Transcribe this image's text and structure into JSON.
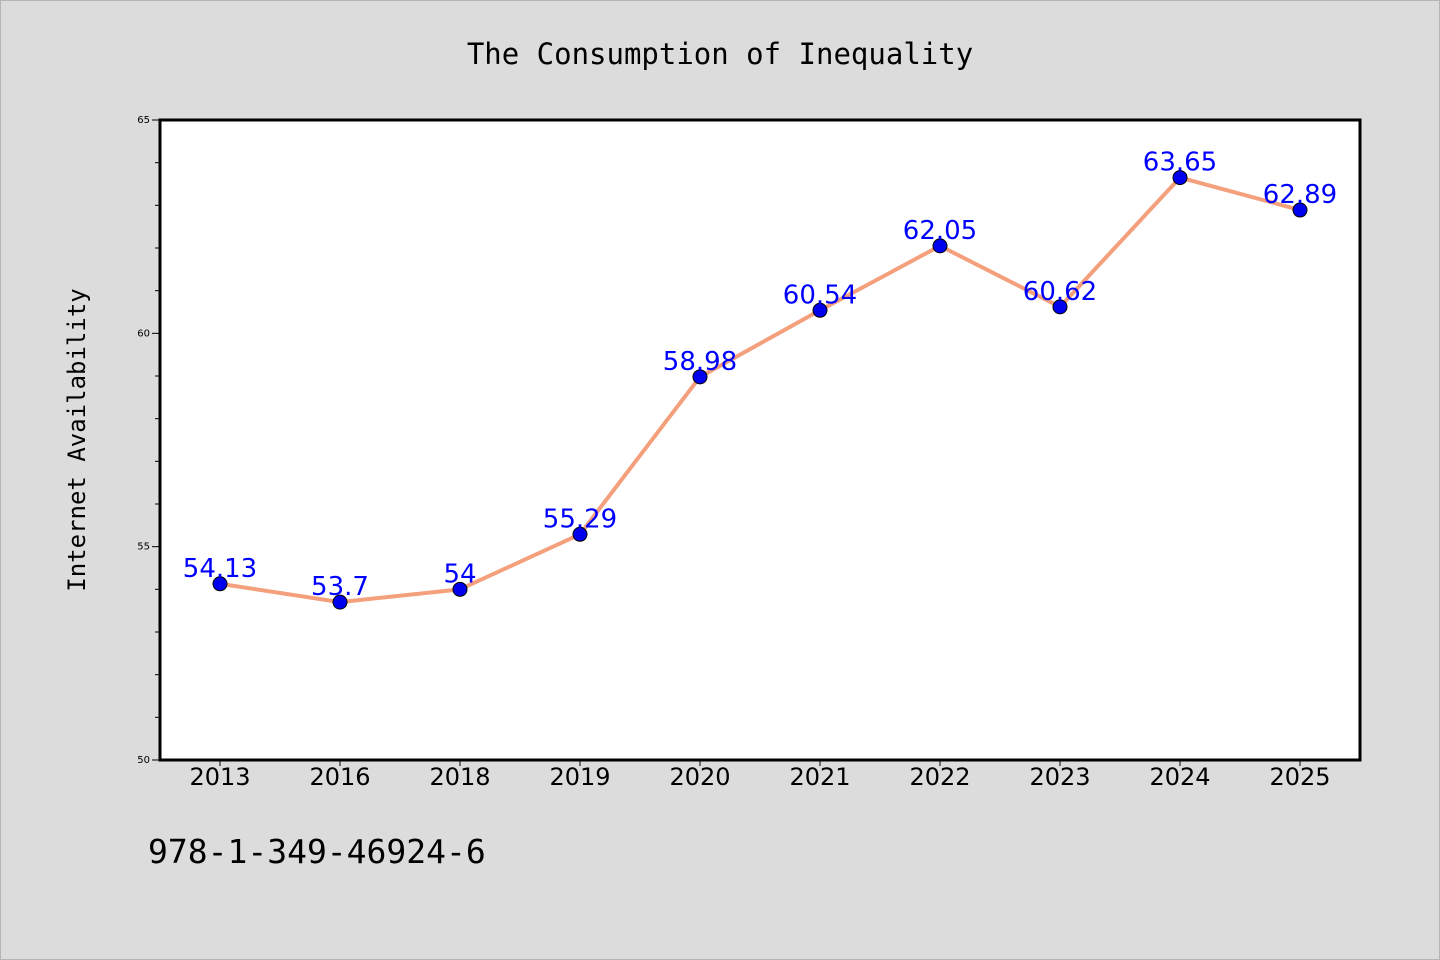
{
  "chart_data": {
    "type": "line",
    "title": "The Consumption of Inequality",
    "xlabel": "",
    "ylabel": "Internet Availability",
    "categories": [
      "2013",
      "2016",
      "2018",
      "2019",
      "2020",
      "2021",
      "2022",
      "2023",
      "2024",
      "2025"
    ],
    "series": [
      {
        "values": [
          54.13,
          53.7,
          54,
          55.29,
          58.98,
          60.54,
          62.05,
          60.62,
          63.65,
          62.89
        ]
      }
    ],
    "data_labels": [
      "54.13",
      "53.7",
      "54",
      "55.29",
      "58.98",
      "60.54",
      "62.05",
      "60.62",
      "63.65",
      "62.89"
    ],
    "ylim": [
      50,
      65
    ],
    "yticks": [
      50,
      55,
      60,
      65
    ],
    "grid": false,
    "legend": "none",
    "colors": {
      "line": "#f4a07c",
      "marker": "#0000ee",
      "data_label": "#0000ff",
      "background": "#dcdcdc",
      "plot_background": "#ffffff"
    }
  },
  "footer": {
    "text": "978-1-349-46924-6"
  }
}
